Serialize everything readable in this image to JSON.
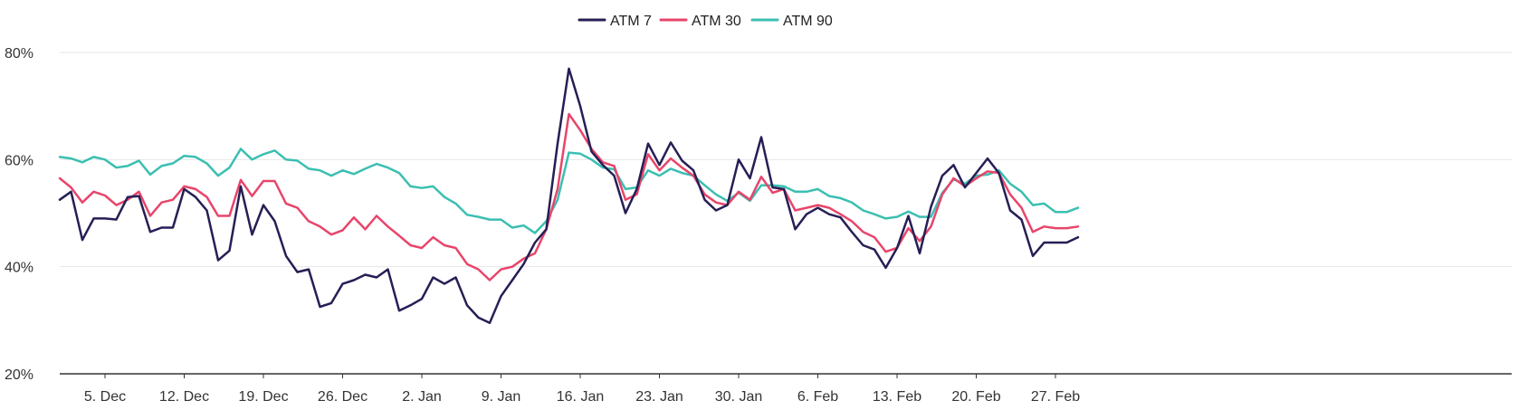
{
  "chart_data": {
    "type": "line",
    "title": "",
    "xlabel": "",
    "ylabel": "",
    "ylim": [
      20,
      80
    ],
    "y_ticks": [
      20,
      40,
      60,
      80
    ],
    "y_tick_labels": [
      "20%",
      "40%",
      "60%",
      "80%"
    ],
    "x_tick_labels": [
      "5. Dec",
      "12. Dec",
      "19. Dec",
      "26. Dec",
      "2. Jan",
      "9. Jan",
      "16. Jan",
      "23. Jan",
      "30. Jan",
      "6. Feb",
      "13. Feb",
      "20. Feb",
      "27. Feb"
    ],
    "x_tick_day_index": [
      4,
      11,
      18,
      25,
      32,
      39,
      46,
      53,
      60,
      67,
      74,
      81,
      88
    ],
    "x_start_label": "1. Dec",
    "grid": true,
    "legend_position": "top-center",
    "series": [
      {
        "name": "ATM 7",
        "color": "#251f55",
        "values": [
          52.5,
          54,
          45,
          49,
          49,
          48.8,
          53,
          53.2,
          46.5,
          47.3,
          47.3,
          54.5,
          53,
          50.5,
          41.2,
          43,
          55,
          46,
          51.5,
          48.5,
          42,
          39,
          39.5,
          32.5,
          33.2,
          36.8,
          37.5,
          38.5,
          38,
          39.5,
          31.8,
          32.8,
          34,
          38,
          36.8,
          38,
          32.8,
          30.5,
          29.5,
          34.5,
          37.5,
          40.5,
          44.5,
          47,
          63,
          77,
          70,
          61.5,
          59,
          57,
          50,
          54.5,
          63,
          59,
          63.2,
          59.8,
          58,
          52.5,
          50.5,
          51.5,
          60,
          56.5,
          64.2,
          54.8,
          54.5,
          47,
          49.8,
          51,
          49.8,
          49.2,
          46.5,
          44,
          43.2,
          39.8,
          43.5,
          49.5,
          42.5,
          51.2,
          57,
          59,
          54.8,
          57.5,
          60.2,
          57.5,
          50.5,
          48.8,
          42,
          44.5,
          44.5,
          44.5,
          45.5
        ]
      },
      {
        "name": "ATM 30",
        "color": "#e8456b",
        "values": [
          56.5,
          54.8,
          52,
          54,
          53.3,
          51.5,
          52.5,
          54,
          49.5,
          52,
          52.5,
          55,
          54.5,
          53,
          49.5,
          49.5,
          56.2,
          53.2,
          56,
          56,
          51.8,
          51,
          48.5,
          47.5,
          46,
          46.8,
          49.2,
          47,
          49.5,
          47.5,
          45.8,
          44,
          43.5,
          45.5,
          44,
          43.5,
          40.5,
          39.5,
          37.5,
          39.5,
          40,
          41.5,
          42.5,
          47,
          54.5,
          68.5,
          65.5,
          62,
          59.5,
          58.8,
          52.5,
          53.5,
          61,
          58,
          60.2,
          58.5,
          57,
          53.5,
          52,
          51.5,
          54,
          52.5,
          56.8,
          53.8,
          54.5,
          50.5,
          51,
          51.5,
          51,
          49.8,
          48.5,
          46.5,
          45.5,
          42.8,
          43.5,
          47.2,
          44.8,
          47.5,
          53.5,
          56.5,
          55,
          56.5,
          57.8,
          57.5,
          53.5,
          51,
          46.5,
          47.5,
          47.2,
          47.2,
          47.5
        ]
      },
      {
        "name": "ATM 90",
        "color": "#3bbfb1",
        "values": [
          60.5,
          60.2,
          59.5,
          60.5,
          60,
          58.5,
          58.8,
          59.8,
          57.2,
          58.8,
          59.3,
          60.7,
          60.5,
          59.3,
          57,
          58.5,
          62,
          60,
          61,
          61.7,
          60,
          59.8,
          58.3,
          58,
          57,
          58,
          57.3,
          58.3,
          59.2,
          58.5,
          57.5,
          55,
          54.7,
          55,
          53,
          51.8,
          49.7,
          49.3,
          48.8,
          48.8,
          47.3,
          47.7,
          46.3,
          48.5,
          52.5,
          61.3,
          61.1,
          60,
          58.5,
          58.2,
          54.5,
          54.8,
          58,
          57,
          58.3,
          57.5,
          57,
          55.2,
          53.5,
          52.3,
          53.8,
          52.3,
          55.2,
          55.2,
          55,
          54,
          54,
          54.5,
          53.2,
          52.8,
          52,
          50.5,
          49.8,
          49,
          49.3,
          50.3,
          49.3,
          49.3,
          53.8,
          56.3,
          55.5,
          57,
          57.2,
          58,
          55.5,
          54,
          51.5,
          51.8,
          50.2,
          50.2,
          51
        ]
      }
    ]
  }
}
